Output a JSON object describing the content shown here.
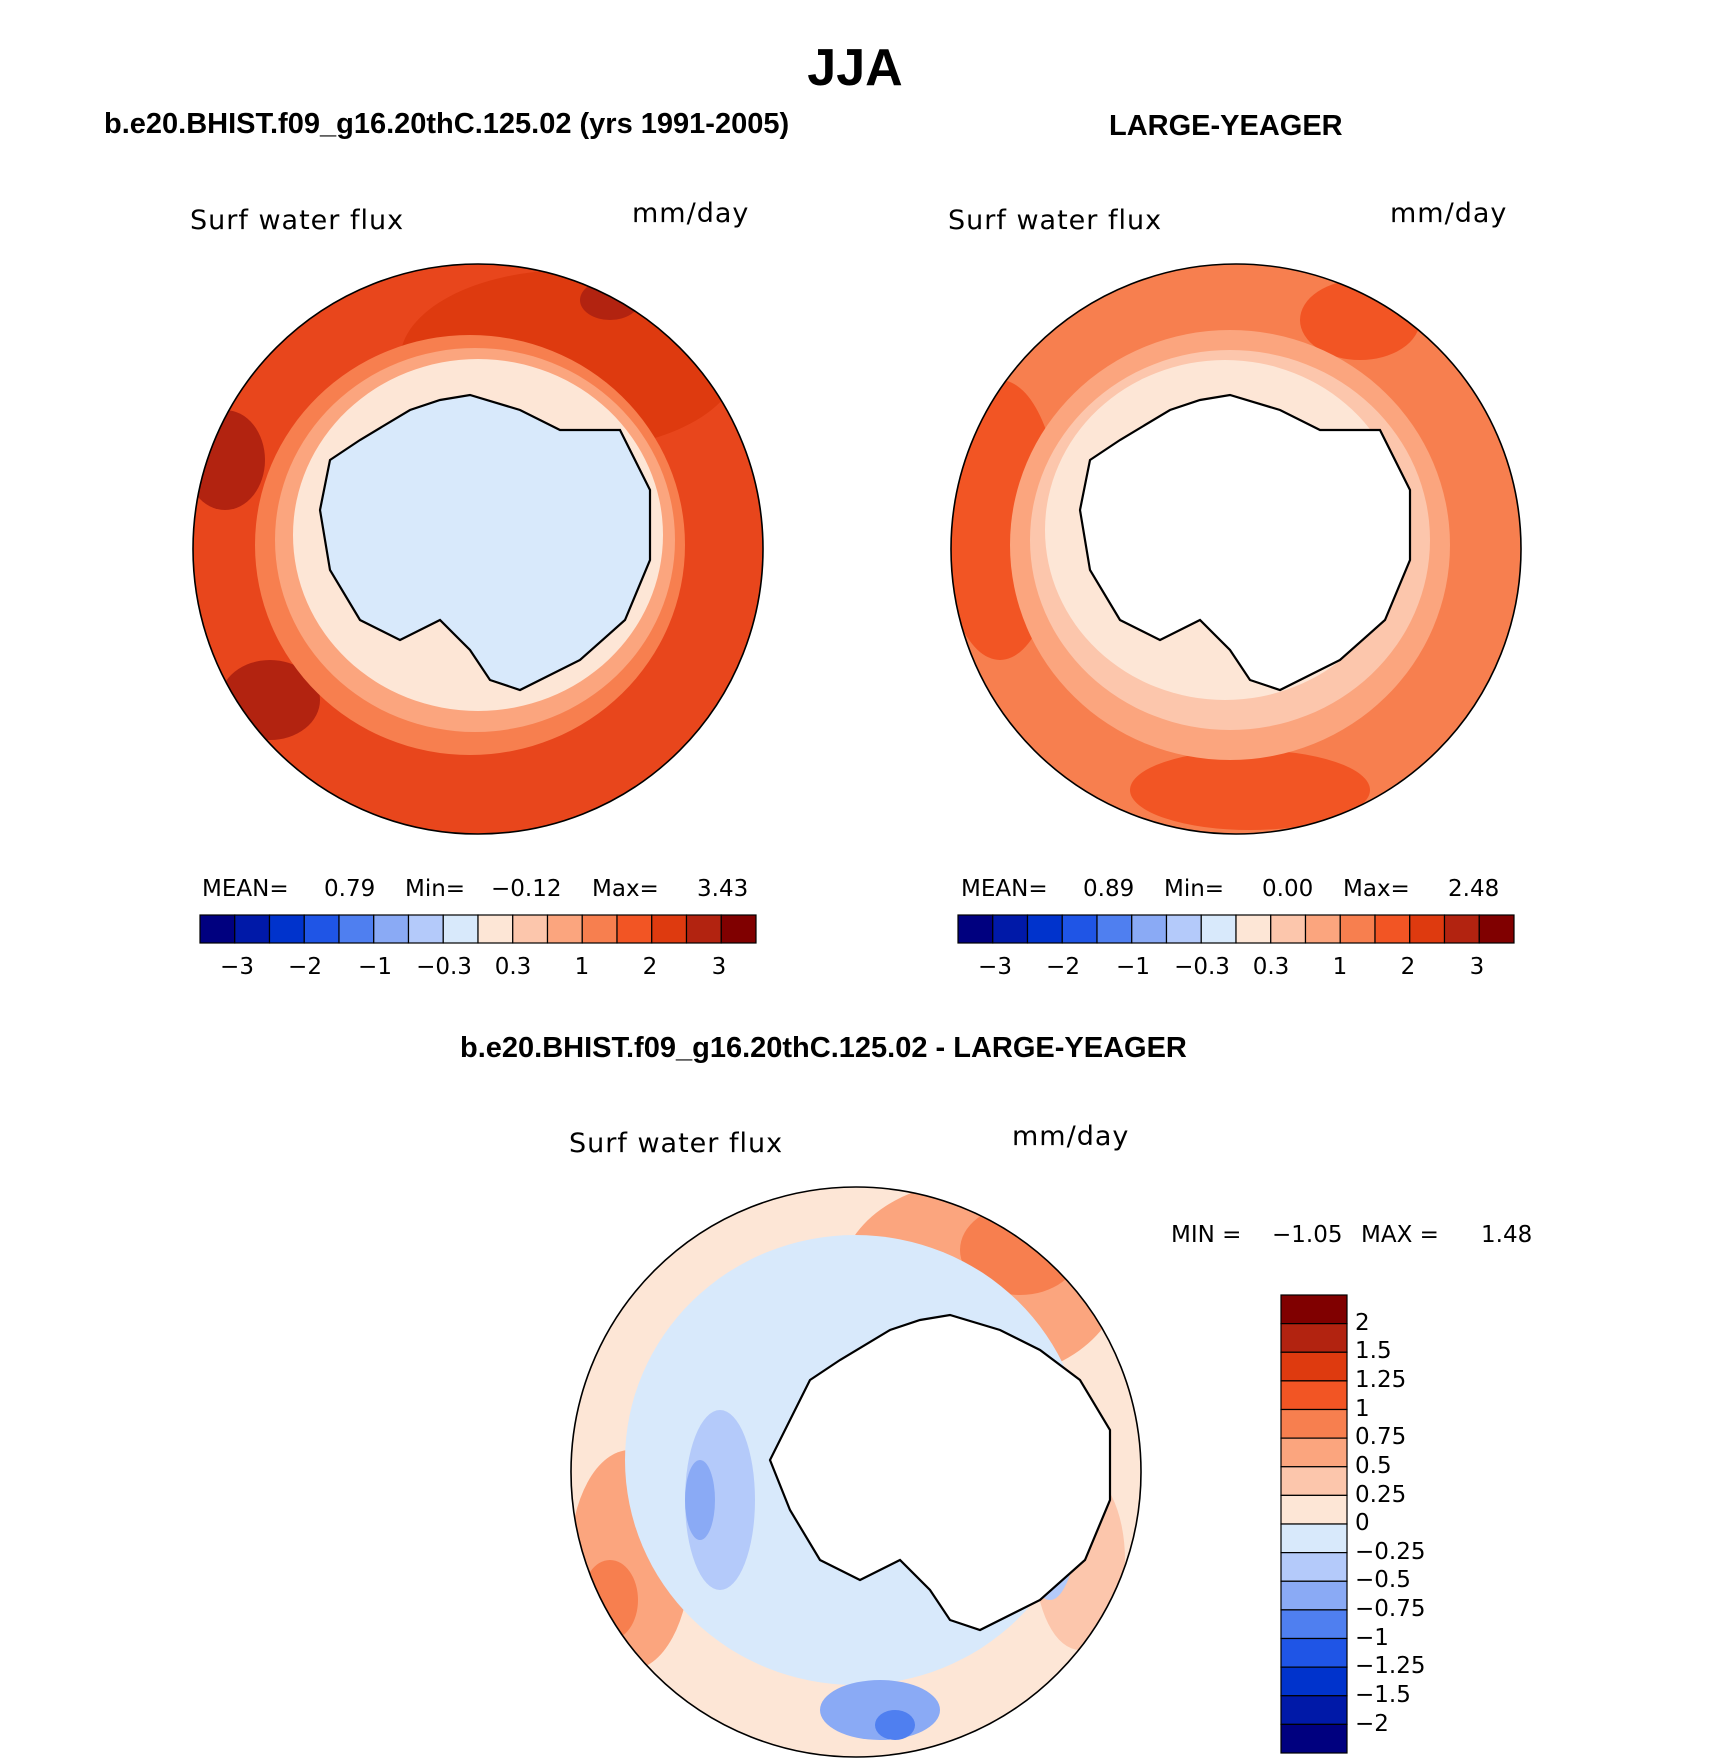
{
  "title": "JJA",
  "panels": {
    "model": {
      "title": "b.e20.BHIST.f09_g16.20thC.125.02 (yrs 1991-2005)",
      "variable": "Surf water flux",
      "units": "mm/day",
      "mean_label": "MEAN=",
      "mean": "0.79",
      "min_label": "Min=",
      "min": "−0.12",
      "max_label": "Max=",
      "max": "3.43"
    },
    "obs": {
      "title": "LARGE-YEAGER",
      "variable": "Surf water flux",
      "units": "mm/day",
      "mean_label": "MEAN=",
      "mean": "0.89",
      "min_label": "Min=",
      "min": "0.00",
      "max_label": "Max=",
      "max": "2.48"
    },
    "diff": {
      "title": "b.e20.BHIST.f09_g16.20thC.125.02 - LARGE-YEAGER",
      "variable": "Surf water flux",
      "units": "mm/day",
      "min_label": "MIN =",
      "min": "−1.05",
      "max_label": "MAX =",
      "max": "1.48"
    }
  },
  "colorbars": {
    "abs": {
      "colors": [
        "#00007f",
        "#0019a8",
        "#0033cc",
        "#1f55e6",
        "#4f7ff0",
        "#8aaaf5",
        "#b4cafa",
        "#d8e9fb",
        "#fde6d6",
        "#fcc6ac",
        "#fba57e",
        "#f77f4f",
        "#f25524",
        "#de3a0f",
        "#b22310",
        "#800000"
      ],
      "tick_labels": [
        "−3",
        "−2",
        "−1",
        "−0.3",
        "0.3",
        "1",
        "2",
        "3"
      ]
    },
    "diff": {
      "colors": [
        "#800000",
        "#b22310",
        "#de3a0f",
        "#f25524",
        "#f77f4f",
        "#fba57e",
        "#fcc6ac",
        "#fde6d6",
        "#d8e9fb",
        "#b4cafa",
        "#8aaaf5",
        "#4f7ff0",
        "#1f55e6",
        "#0033cc",
        "#0019a8",
        "#00007f"
      ],
      "tick_labels": [
        "2",
        "1.5",
        "1.25",
        "1",
        "0.75",
        "0.5",
        "0.25",
        "0",
        "−0.25",
        "−0.5",
        "−0.75",
        "−1",
        "−1.25",
        "−1.5",
        "−2"
      ]
    }
  }
}
